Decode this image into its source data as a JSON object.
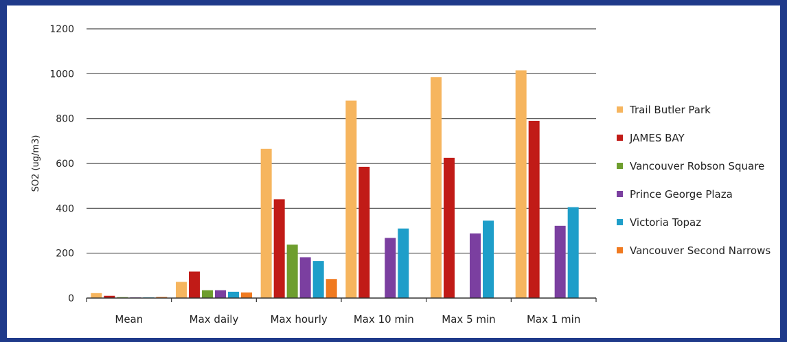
{
  "chart_data": {
    "type": "bar",
    "categories": [
      "Mean",
      "Max daily",
      "Max hourly",
      "Max 10 min",
      "Max 5 min",
      "Max 1 min"
    ],
    "series": [
      {
        "name": "Trail Butler Park",
        "color": "#f6b55e",
        "values": [
          22,
          72,
          665,
          880,
          985,
          1015
        ]
      },
      {
        "name": "JAMES BAY",
        "color": "#c11b17",
        "values": [
          10,
          118,
          440,
          585,
          625,
          790
        ]
      },
      {
        "name": "Vancouver Robson Square",
        "color": "#6e9e2e",
        "values": [
          4,
          35,
          238,
          null,
          null,
          null
        ]
      },
      {
        "name": "Prince George Plaza",
        "color": "#7b3fa0",
        "values": [
          3,
          35,
          182,
          268,
          288,
          322
        ]
      },
      {
        "name": "Victoria Topaz",
        "color": "#1e9ec9",
        "values": [
          3,
          28,
          165,
          310,
          345,
          405
        ]
      },
      {
        "name": "Vancouver Second Narrows",
        "color": "#f07a20",
        "values": [
          5,
          25,
          85,
          null,
          null,
          null
        ]
      }
    ],
    "ylabel": "SO2 (ug/m3)",
    "xlabel": "",
    "title": "",
    "ylim": [
      0,
      1200
    ],
    "yticks": [
      0,
      200,
      400,
      600,
      800,
      1000,
      1200
    ],
    "grid": true,
    "legend": "right"
  }
}
